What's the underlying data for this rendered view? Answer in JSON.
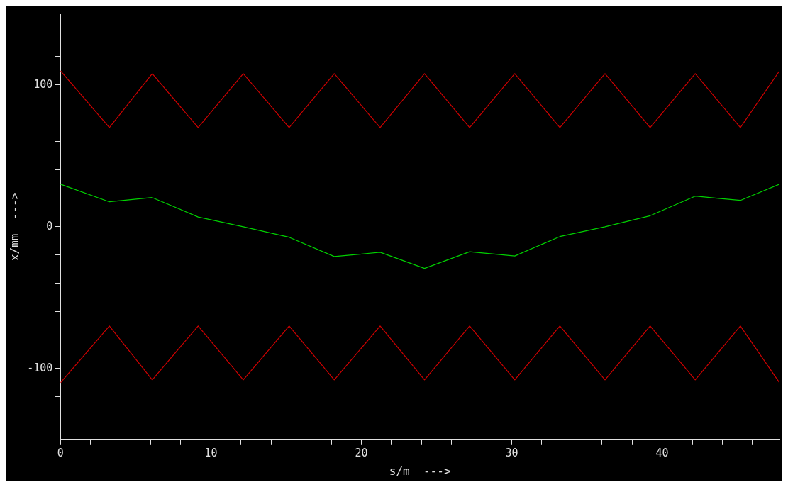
{
  "chart_data": {
    "type": "line",
    "xlabel": "s/m  --->",
    "ylabel": "x/mm  --->",
    "xlim": [
      0,
      47.8
    ],
    "ylim": [
      -150,
      150
    ],
    "xticks": [
      0,
      {
        "value": 2,
        "label": null
      },
      {
        "value": 4,
        "label": null
      },
      {
        "value": 6,
        "label": null
      },
      {
        "value": 8,
        "label": null
      },
      10,
      {
        "value": 12,
        "label": null
      },
      {
        "value": 14,
        "label": null
      },
      {
        "value": 16,
        "label": null
      },
      {
        "value": 18,
        "label": null
      },
      20,
      {
        "value": 22,
        "label": null
      },
      {
        "value": 24,
        "label": null
      },
      {
        "value": 26,
        "label": null
      },
      {
        "value": 28,
        "label": null
      },
      30,
      {
        "value": 32,
        "label": null
      },
      {
        "value": 34,
        "label": null
      },
      {
        "value": 36,
        "label": null
      },
      {
        "value": 38,
        "label": null
      },
      40,
      {
        "value": 42,
        "label": null
      },
      {
        "value": 44,
        "label": null
      },
      {
        "value": 46,
        "label": null
      }
    ],
    "yticks": [
      {
        "value": -140,
        "label": null
      },
      {
        "value": -120,
        "label": null
      },
      -100,
      {
        "value": -80,
        "label": null
      },
      {
        "value": -60,
        "label": null
      },
      {
        "value": -40,
        "label": null
      },
      {
        "value": -20,
        "label": null
      },
      0,
      {
        "value": 20,
        "label": null
      },
      {
        "value": 40,
        "label": null
      },
      {
        "value": 60,
        "label": null
      },
      {
        "value": 80,
        "label": null
      },
      100,
      {
        "value": 120,
        "label": null
      },
      {
        "value": 140,
        "label": null
      }
    ],
    "grid": false,
    "legend": false,
    "marker": "none",
    "line_style": "solid",
    "series": [
      {
        "color": "#d00000",
        "x": [
          0,
          3.25,
          6.1,
          9.15,
          12.15,
          15.2,
          18.2,
          21.25,
          24.2,
          27.2,
          30.2,
          33.2,
          36.2,
          39.2,
          42.2,
          45.2,
          47.8
        ],
        "values": [
          110,
          70,
          108,
          70,
          108,
          70,
          108,
          70,
          108,
          70,
          108,
          70,
          108,
          70,
          108,
          70,
          110
        ]
      },
      {
        "color": "#d00000",
        "x": [
          0,
          3.25,
          6.1,
          9.15,
          12.15,
          15.2,
          18.2,
          21.25,
          24.2,
          27.2,
          30.2,
          33.2,
          36.2,
          39.2,
          42.2,
          45.2,
          47.8
        ],
        "values": [
          -110,
          -70,
          -108,
          -70,
          -108,
          -70,
          -108,
          -70,
          -108,
          -70,
          -108,
          -70,
          -108,
          -70,
          -108,
          -70,
          -110
        ]
      },
      {
        "color": "#00d000",
        "x": [
          0,
          3.25,
          6.1,
          9.15,
          12.15,
          15.2,
          18.2,
          21.25,
          24.2,
          27.2,
          30.2,
          33.2,
          36.2,
          39.2,
          42.2,
          45.2,
          47.8
        ],
        "values": [
          30,
          17.6,
          20.6,
          6.9,
          0,
          -7.4,
          -21,
          -18,
          -29.4,
          -17.6,
          -20.6,
          -6.9,
          0,
          7.8,
          21.6,
          18.6,
          30
        ]
      }
    ]
  }
}
